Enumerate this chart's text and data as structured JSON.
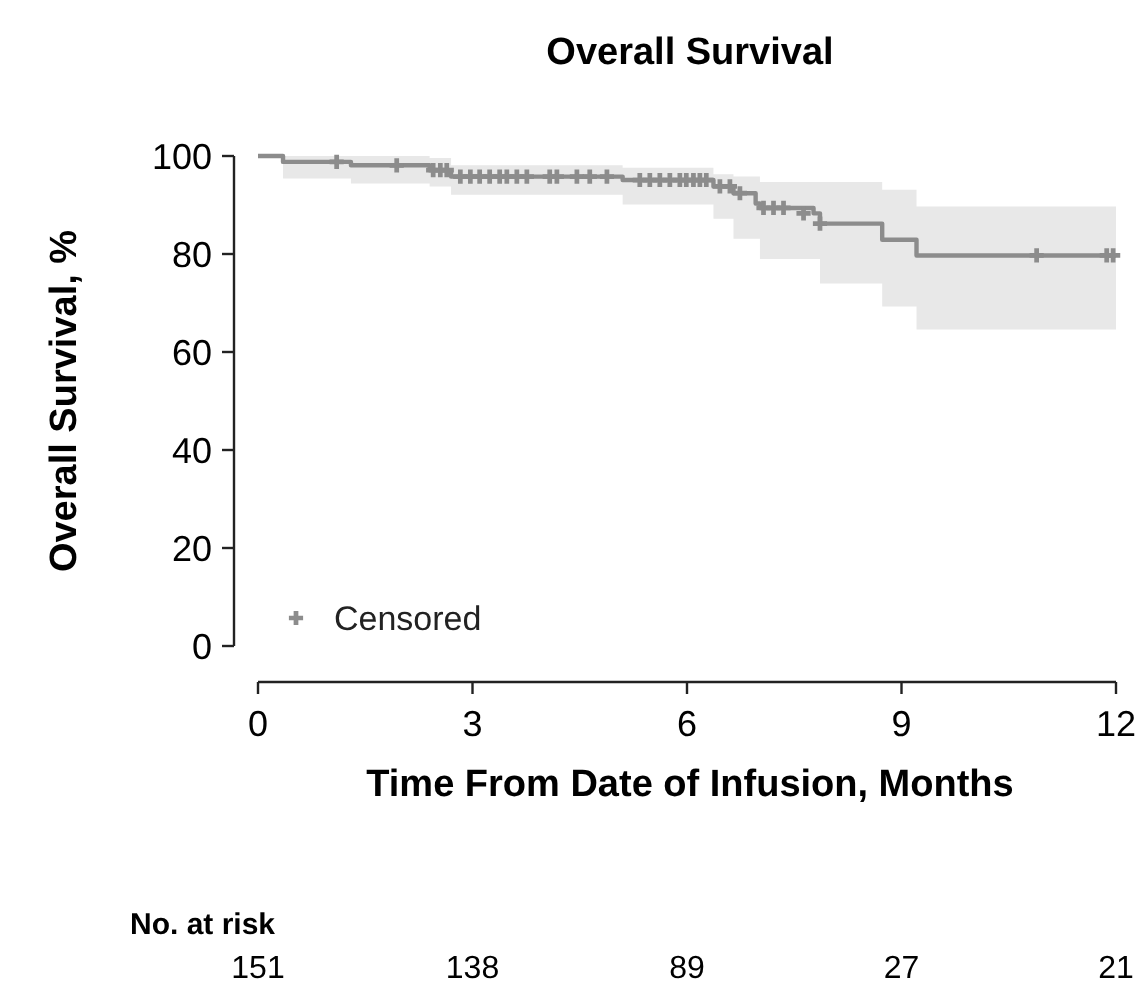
{
  "chart_data": {
    "type": "step",
    "title": "Overall Survival",
    "xlabel": "Time From Date of Infusion, Months",
    "ylabel": "Overall Survival, %",
    "xlim": [
      0,
      12
    ],
    "xticks": [
      0,
      3,
      6,
      9,
      12
    ],
    "ylim": [
      0,
      100
    ],
    "yticks": [
      0,
      20,
      40,
      60,
      80,
      100
    ],
    "legend": "bottom left",
    "grid": false,
    "series": [
      {
        "color": "#8c8c8c",
        "marker": "none",
        "x": [
          0,
          0.35,
          1.3,
          2.4,
          2.7,
          5.1,
          6.37,
          6.65,
          6.96,
          7.02,
          7.77,
          7.86,
          8.73,
          9.21,
          12
        ],
        "values": [
          100,
          98.8,
          98.1,
          97.1,
          95.8,
          95.1,
          93.8,
          92.4,
          90.3,
          89.4,
          88.3,
          86.2,
          82.9,
          79.7,
          79.7
        ],
        "lower": [
          100,
          95.4,
          94.4,
          93.8,
          92.1,
          90.1,
          87.2,
          83.1,
          83.1,
          79,
          79,
          74,
          69.3,
          64.6,
          64.6
        ],
        "upper": [
          100,
          100,
          100,
          99.6,
          98.1,
          97.6,
          96.3,
          95.8,
          95.8,
          94.7,
          94.7,
          94.7,
          93.1,
          89.7,
          89.7
        ]
      },
      {
        "type": "scatter",
        "name": "Censored",
        "color": "#8c8c8c",
        "marker": "cross",
        "x": [
          1.1,
          1.94,
          2.45,
          2.55,
          2.64,
          2.83,
          2.97,
          3.1,
          3.24,
          3.38,
          3.48,
          3.62,
          3.76,
          4.08,
          4.18,
          4.46,
          4.64,
          4.88,
          5.34,
          5.48,
          5.62,
          5.76,
          5.9,
          5.99,
          6.09,
          6.18,
          6.27,
          6.46,
          6.6,
          6.74,
          7.07,
          7.21,
          7.35,
          7.63,
          7.86,
          10.89,
          11.87,
          11.96
        ],
        "values": [
          98.8,
          98.1,
          97.1,
          97.1,
          97.1,
          95.8,
          95.8,
          95.8,
          95.8,
          95.8,
          95.8,
          95.8,
          95.8,
          95.8,
          95.8,
          95.8,
          95.8,
          95.8,
          95.1,
          95.1,
          95.1,
          95.1,
          95.1,
          95.1,
          95.1,
          95.1,
          95.1,
          93.8,
          93.8,
          92.4,
          89.4,
          89.4,
          89.4,
          88.3,
          86.2,
          79.7,
          79.7,
          79.7
        ]
      }
    ],
    "annotations": [
      "No. at risk",
      "151",
      "138",
      "89",
      "27",
      "21"
    ]
  }
}
